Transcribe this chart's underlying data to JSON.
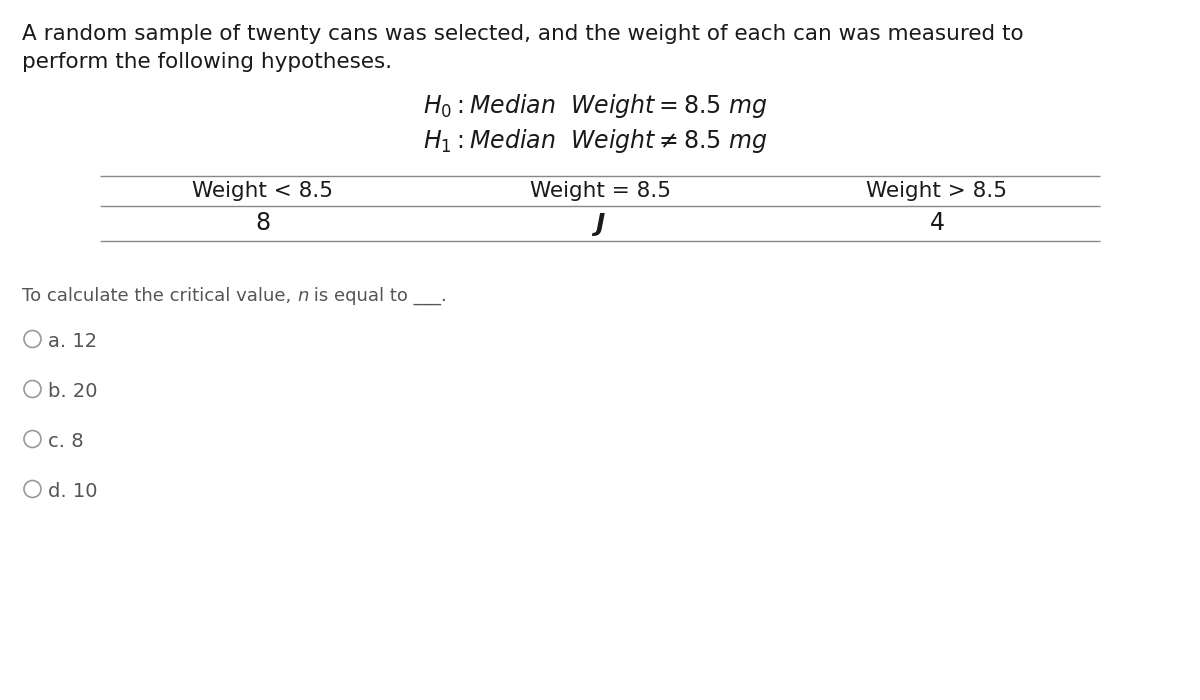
{
  "background_color": "#ffffff",
  "intro_text_line1": "A random sample of twenty cans was selected, and the weight of each can was measured to",
  "intro_text_line2": "perform the following hypotheses.",
  "table_headers": [
    "Weight < 8.5",
    "Weight = 8.5",
    "Weight > 8.5"
  ],
  "table_values": [
    "8",
    "J",
    "4"
  ],
  "choices": [
    "a. 12",
    "b. 20",
    "c. 8",
    "d. 10"
  ],
  "intro_fontsize": 15.5,
  "hypothesis_fontsize": 17,
  "table_header_fontsize": 15.5,
  "table_value_fontsize": 17,
  "question_fontsize": 13,
  "choice_fontsize": 14,
  "text_color": "#1a1a1a",
  "choice_color": "#555555",
  "line_color": "#888888"
}
